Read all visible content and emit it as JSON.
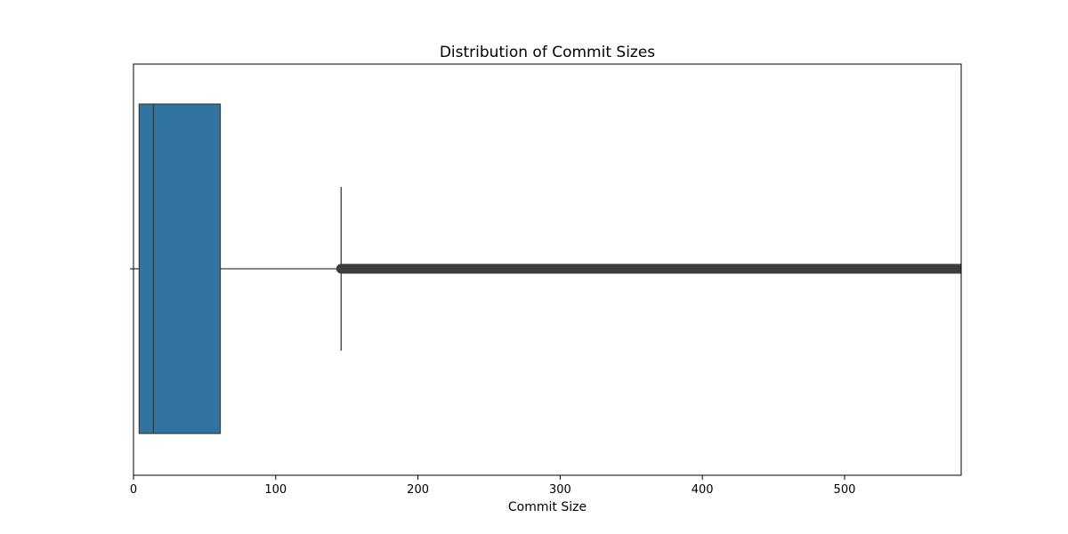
{
  "chart_data": {
    "type": "box",
    "orientation": "horizontal",
    "title": "Distribution of Commit Sizes",
    "xlabel": "Commit Size",
    "ylabel": "",
    "xlim": [
      0,
      582
    ],
    "x_ticks": [
      0,
      100,
      200,
      300,
      400,
      500
    ],
    "x_tick_labels": [
      "0",
      "100",
      "200",
      "300",
      "400",
      "500"
    ],
    "grid": false,
    "legend": "none",
    "box": {
      "whisker_low": 0,
      "q1": 4,
      "median": 14,
      "q3": 61,
      "whisker_high": 146,
      "outliers_from": 146,
      "outliers_to": 582
    },
    "colors": {
      "box_fill": "#3274a1",
      "line": "#3d3d3d",
      "outlier": "#3d3d3d",
      "frame": "#000000"
    }
  }
}
